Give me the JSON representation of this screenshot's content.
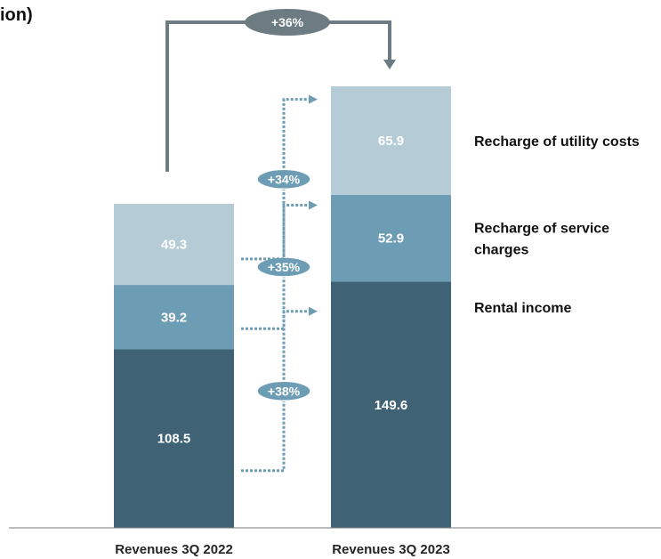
{
  "title_fragment": "ion)",
  "chart_data": {
    "type": "bar",
    "stacked": true,
    "categories": [
      "Revenues 3Q 2022",
      "Revenues 3Q 2023"
    ],
    "series": [
      {
        "name": "Rental income",
        "values": [
          108.5,
          149.6
        ],
        "color": "#3f6274"
      },
      {
        "name": "Recharge of service charges",
        "values": [
          39.2,
          52.9
        ],
        "color": "#6d9db4"
      },
      {
        "name": "Recharge of utility costs",
        "values": [
          49.3,
          65.9
        ],
        "color": "#b5ccd6"
      }
    ],
    "segment_labels": [
      [
        "108.5",
        "149.6"
      ],
      [
        "39.2",
        "52.9"
      ],
      [
        "49.3",
        "65.9"
      ]
    ],
    "legend_lines": [
      [
        "Rental income"
      ],
      [
        "Recharge of service",
        "charges"
      ],
      [
        "Recharge of utility costs"
      ]
    ],
    "legend_position": "right",
    "growth_labels": [
      "+38%",
      "+35%",
      "+34%"
    ],
    "total_growth_label": "+36%",
    "grid": false
  },
  "colors": {
    "connector": "#6d7b82",
    "dotted_arrow": "#6d9db4",
    "badge_total": "#6d7b82",
    "badge_segment": "#6d9db4"
  }
}
